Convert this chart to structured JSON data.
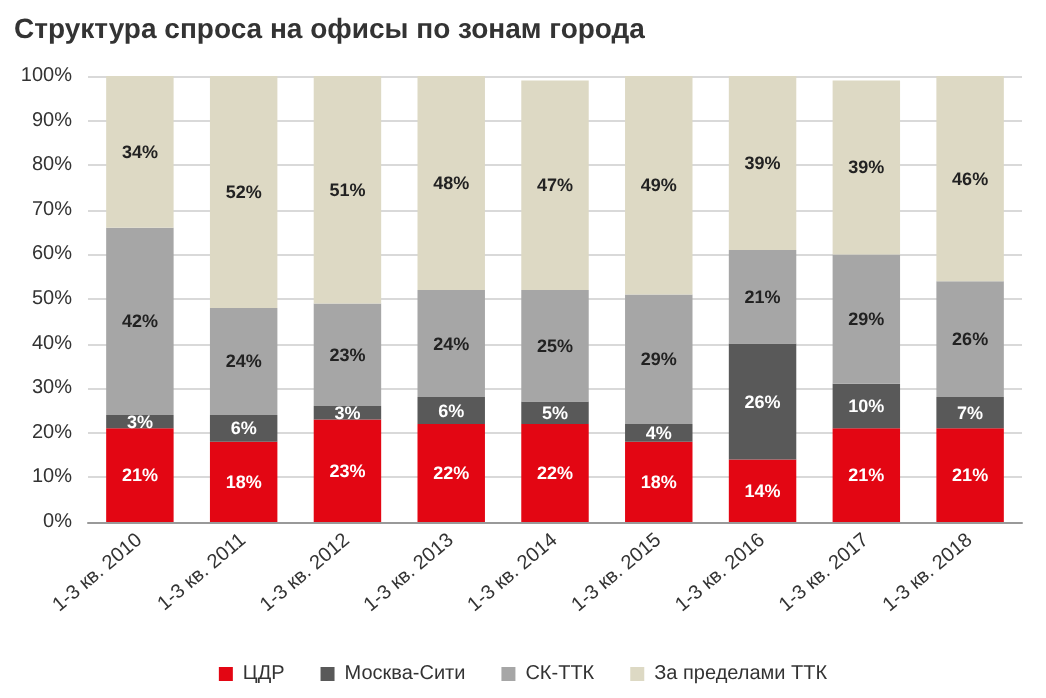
{
  "chart_data": {
    "type": "bar",
    "stacked": true,
    "title": "Структура спроса на офисы по зонам города",
    "categories": [
      "1-3 кв. 2010",
      "1-3 кв. 2011",
      "1-3 кв. 2012",
      "1-3 кв. 2013",
      "1-3 кв. 2014",
      "1-3 кв. 2015",
      "1-3 кв. 2016",
      "1-3 кв. 2017",
      "1-3 кв. 2018"
    ],
    "series": [
      {
        "name": "ЦДР",
        "color": "#e30613",
        "values": [
          21,
          18,
          23,
          22,
          22,
          18,
          14,
          21,
          21
        ],
        "value_labels": [
          "21%",
          "18%",
          "23%",
          "22%",
          "22%",
          "18%",
          "14%",
          "21%",
          "21%"
        ]
      },
      {
        "name": "Москва-Сити",
        "color": "#595959",
        "values": [
          3,
          6,
          3,
          6,
          5,
          4,
          26,
          10,
          7
        ],
        "value_labels": [
          "3%",
          "6%",
          "3%",
          "6%",
          "5%",
          "4%",
          "26%",
          "10%",
          "7%"
        ]
      },
      {
        "name": "СК-ТТК",
        "color": "#a6a6a6",
        "values": [
          42,
          24,
          23,
          24,
          25,
          29,
          21,
          29,
          26
        ],
        "value_labels": [
          "42%",
          "24%",
          "23%",
          "24%",
          "25%",
          "29%",
          "21%",
          "29%",
          "26%"
        ]
      },
      {
        "name": "За пределами ТТК",
        "color": "#ddd9c4",
        "values": [
          34,
          52,
          51,
          48,
          47,
          49,
          39,
          39,
          46
        ],
        "value_labels": [
          "34%",
          "52%",
          "51%",
          "48%",
          "47%",
          "49%",
          "39%",
          "39%",
          "46%"
        ]
      }
    ],
    "ylim": [
      0,
      100
    ],
    "yticks": [
      {
        "value": 0,
        "label": "0%"
      },
      {
        "value": 10,
        "label": "10%"
      },
      {
        "value": 20,
        "label": "20%"
      },
      {
        "value": 30,
        "label": "30%"
      },
      {
        "value": 40,
        "label": "40%"
      },
      {
        "value": 50,
        "label": "50%"
      },
      {
        "value": 60,
        "label": "60%"
      },
      {
        "value": 70,
        "label": "70%"
      },
      {
        "value": 80,
        "label": "80%"
      },
      {
        "value": 90,
        "label": "90%"
      },
      {
        "value": 100,
        "label": "100%"
      }
    ],
    "grid": "y",
    "legend": "bottom"
  }
}
